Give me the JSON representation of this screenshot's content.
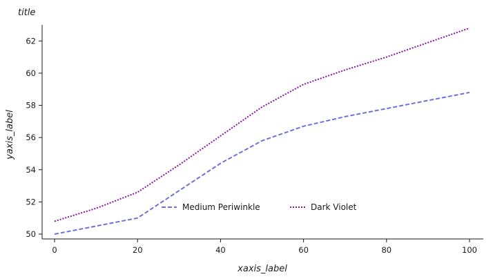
{
  "chart_data": {
    "type": "line",
    "title": "title",
    "xlabel": "xaxis_label",
    "ylabel": "yaxis_label",
    "xlim": [
      0,
      100
    ],
    "ylim": [
      49.7,
      63.0
    ],
    "x_ticks": [
      0,
      20,
      40,
      60,
      80,
      100
    ],
    "y_ticks": [
      50,
      52,
      54,
      56,
      58,
      60,
      62
    ],
    "grid": false,
    "legend_position": "bottom",
    "series": [
      {
        "name": "Medium Periwinkle",
        "color": "#6f6fdf",
        "dash": "dashed",
        "x": [
          0,
          10,
          20,
          30,
          40,
          50,
          60,
          70,
          80,
          90,
          100
        ],
        "y": [
          50.0,
          50.5,
          51.0,
          52.7,
          54.4,
          55.8,
          56.7,
          57.3,
          57.8,
          58.3,
          58.8
        ]
      },
      {
        "name": "Dark Violet",
        "color": "#8b0ea6",
        "dash": "dotted",
        "x": [
          0,
          10,
          20,
          30,
          40,
          50,
          60,
          70,
          80,
          90,
          100
        ],
        "y": [
          50.8,
          51.6,
          52.6,
          54.3,
          56.1,
          57.9,
          59.3,
          60.2,
          61.0,
          61.9,
          62.8
        ]
      }
    ]
  }
}
